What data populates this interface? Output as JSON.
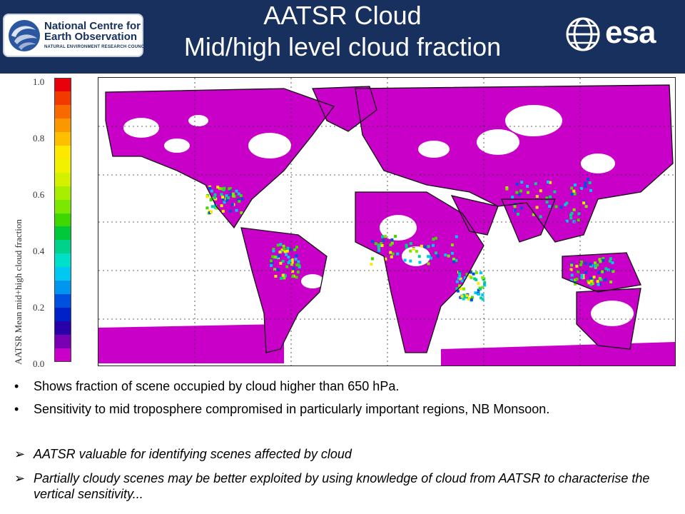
{
  "header": {
    "logo_left": {
      "line1": "National Centre for",
      "line2": "Earth Observation",
      "line3": "NATURAL ENVIRONMENT RESEARCH COUNCIL"
    },
    "title_line1": "AATSR Cloud",
    "title_line2": "Mid/high level cloud fraction",
    "logo_right": {
      "text": "esa"
    },
    "background": "#17305e"
  },
  "colorbar": {
    "label": "AATSR Mean mid+high cloud fraction",
    "ticks": [
      "1.0",
      "0.8",
      "0.6",
      "0.4",
      "0.2",
      "0.0"
    ],
    "colors": [
      "#e8000b",
      "#f23a00",
      "#f86a00",
      "#fb9800",
      "#fdc000",
      "#ffe800",
      "#f2f200",
      "#d4f200",
      "#a8ee00",
      "#7ae800",
      "#3fd700",
      "#00c83a",
      "#00d28c",
      "#00e0c8",
      "#00c8f0",
      "#0096f0",
      "#0050e0",
      "#0020c8",
      "#2a00a8",
      "#7a00b4",
      "#c800c8"
    ]
  },
  "map": {
    "description_colors": {
      "high_cloud": "#c800c8",
      "ocean_clear": "#ffffff"
    }
  },
  "bullets": [
    {
      "marker": "•",
      "text": "Shows fraction of scene occupied by cloud higher than 650 hPa.",
      "italic": false
    },
    {
      "marker": "•",
      "text": "Sensitivity to mid troposphere compromised in particularly important regions, NB Monsoon.",
      "italic": false
    },
    {
      "marker": "➢",
      "text": "AATSR valuable for identifying scenes affected by cloud",
      "italic": true
    },
    {
      "marker": "➢",
      "text": "Partially cloudy scenes may be better exploited by using knowledge of cloud from AATSR to characterise the vertical sensitivity...",
      "italic": true
    }
  ]
}
